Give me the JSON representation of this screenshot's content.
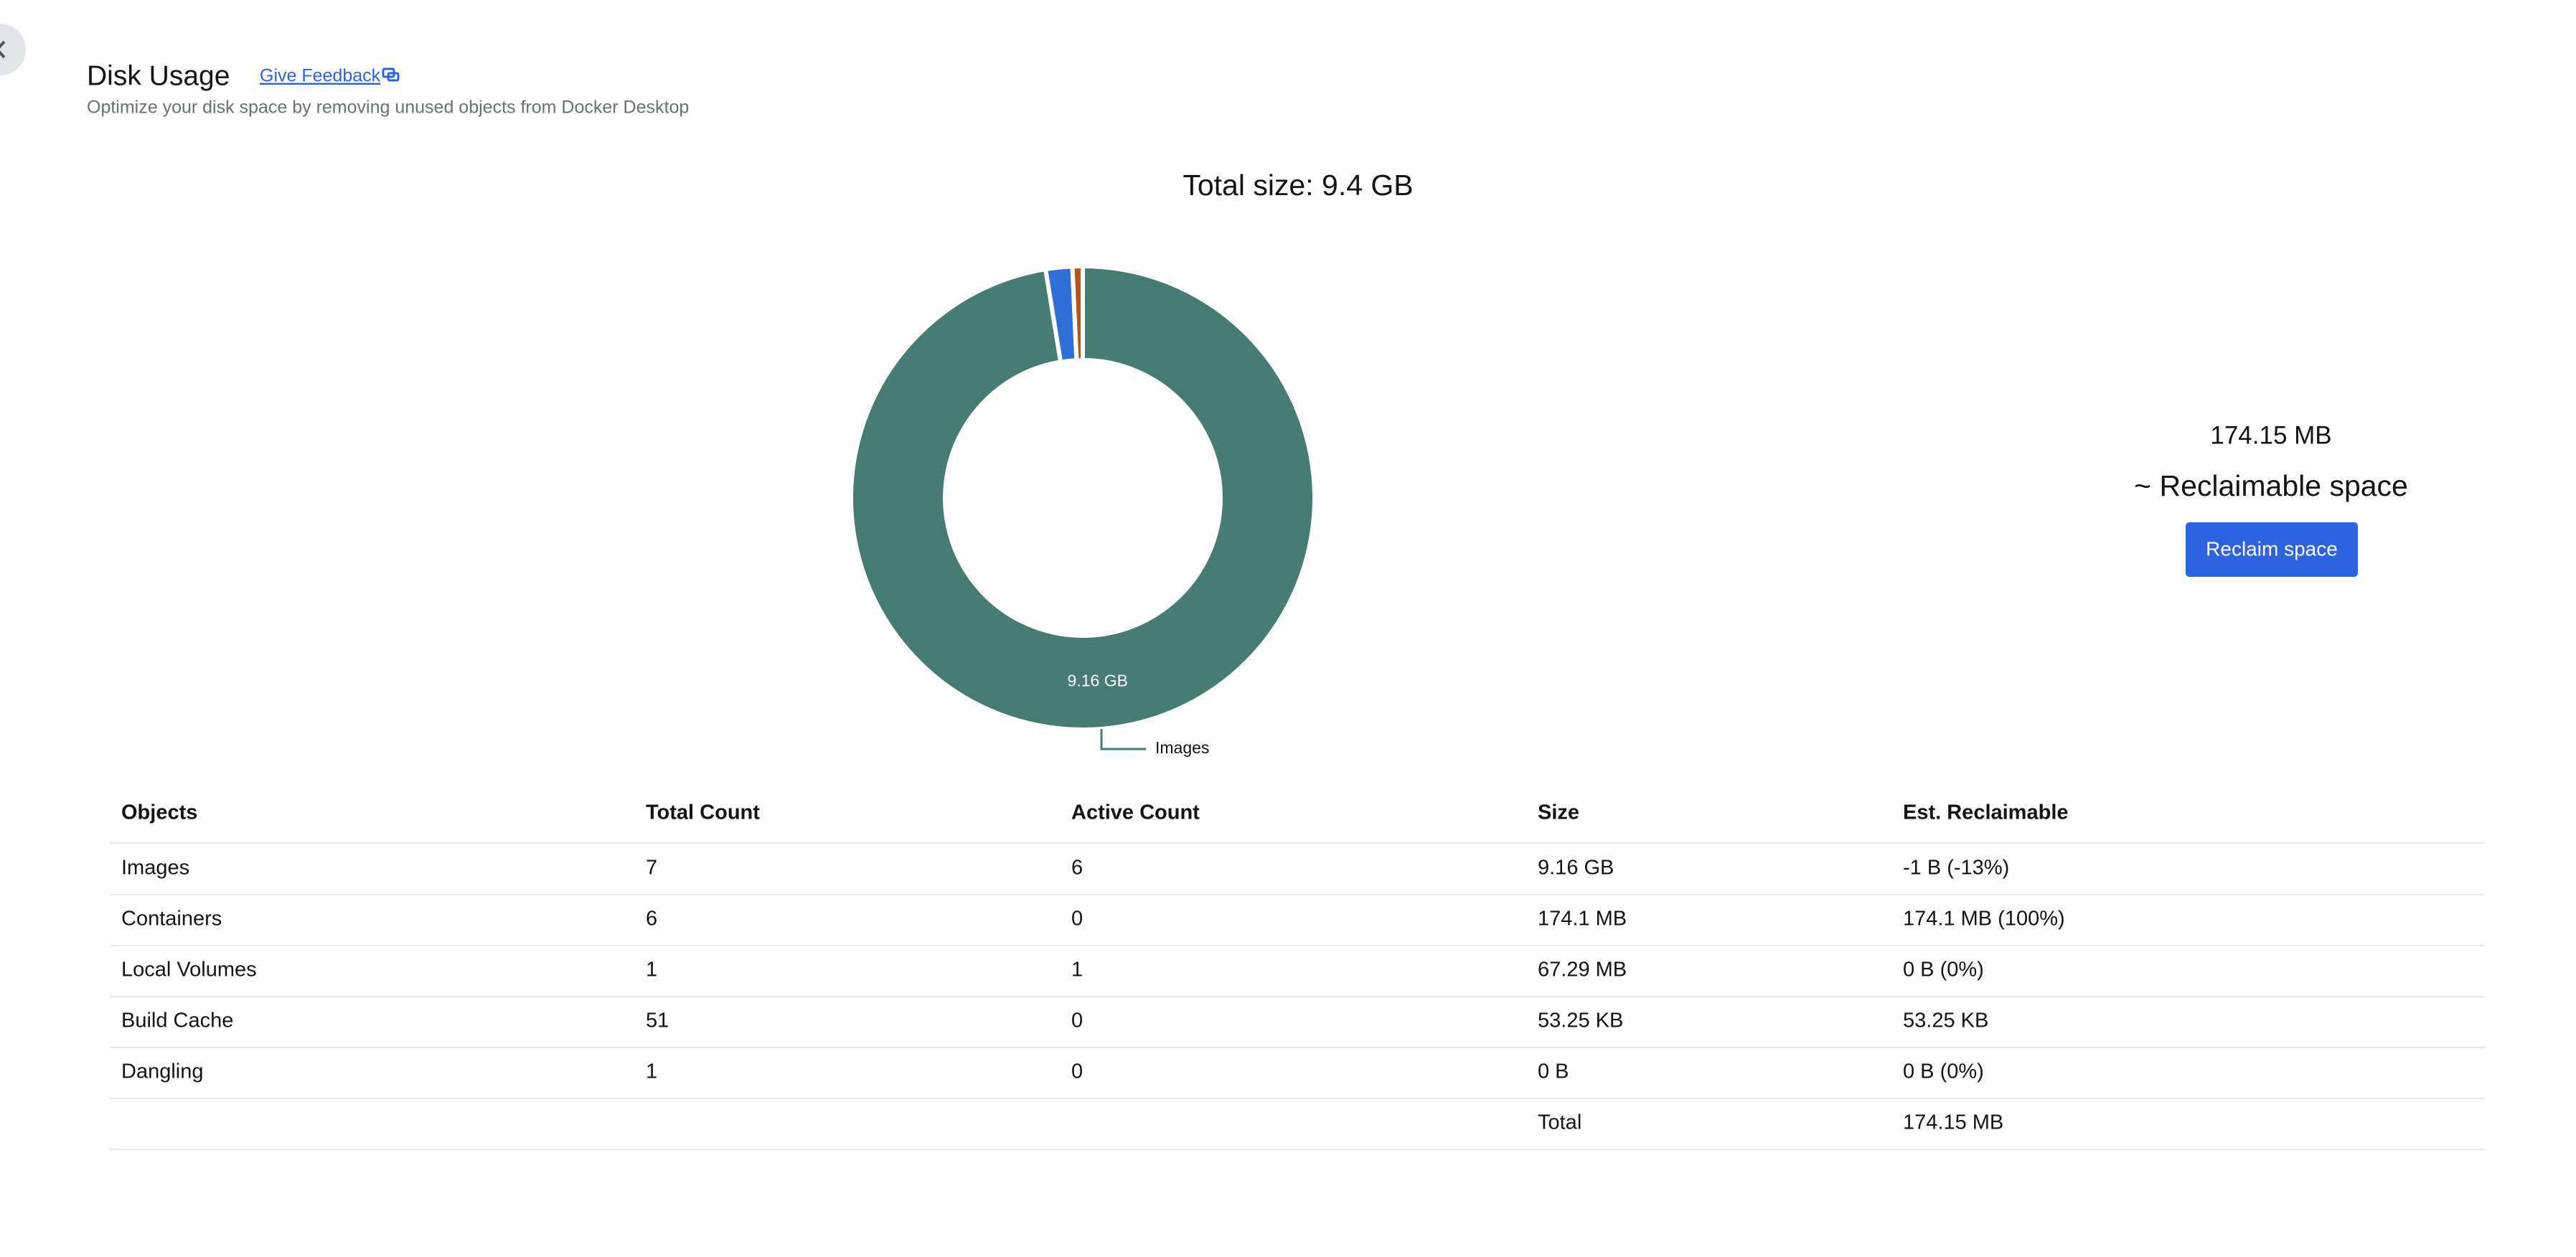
{
  "header": {
    "title": "Disk Usage",
    "feedback": "Give Feedback",
    "subtitle": "Optimize your disk space by removing unused objects from Docker Desktop"
  },
  "chart_data": {
    "type": "pie",
    "donut": true,
    "title": "Total size: 9.4 GB",
    "categories": [
      "Images",
      null,
      null,
      null,
      null
    ],
    "values": [
      9160,
      174.1,
      67.29,
      0.05325,
      0
    ],
    "value_labels": [
      "9.16 GB",
      null,
      null,
      null,
      null
    ],
    "colors": [
      "#467c73",
      "#2f6fd6",
      "#b5561f",
      "#9aa1a8",
      "#c7ccd1"
    ]
  },
  "reclaim": {
    "amount": "174.15 MB",
    "label": "~ Reclaimable space",
    "button": "Reclaim space"
  },
  "table": {
    "columns": [
      "Objects",
      "Total Count",
      "Active Count",
      "Size",
      "Est. Reclaimable"
    ],
    "rows": [
      [
        "Images",
        7,
        6,
        "9.16 GB",
        "-1 B (-13%)"
      ],
      [
        "Containers",
        6,
        0,
        "174.1 MB",
        "174.1 MB (100%)"
      ],
      [
        "Local Volumes",
        1,
        1,
        "67.29 MB",
        "0 B (0%)"
      ],
      [
        "Build Cache",
        51,
        0,
        "53.25 KB",
        "53.25 KB"
      ],
      [
        "Dangling",
        1,
        0,
        "0 B",
        "0 B (0%)"
      ]
    ],
    "total": {
      "label": "Total",
      "value": "174.15 MB"
    }
  }
}
